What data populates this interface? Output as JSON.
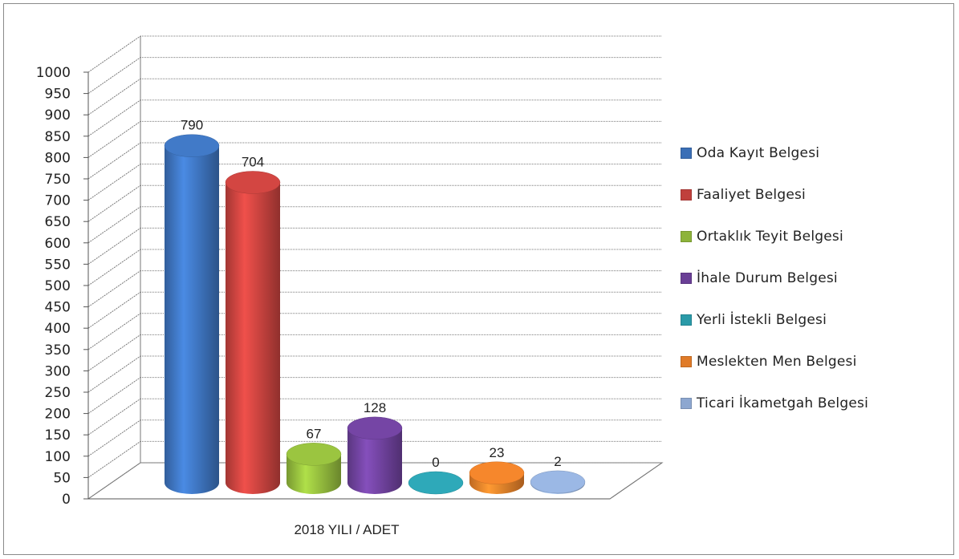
{
  "chart_data": {
    "type": "bar",
    "categories": [
      "2018 YILI / ADET"
    ],
    "xlabel": "2018 YILI / ADET",
    "ylim": [
      0,
      1000
    ],
    "ytick_step": 50,
    "yticks": [
      "0",
      "50",
      "100",
      "150",
      "200",
      "250",
      "300",
      "350",
      "400",
      "450",
      "500",
      "550",
      "600",
      "650",
      "700",
      "750",
      "800",
      "850",
      "900",
      "950",
      "1000"
    ],
    "grid": true,
    "three_d": true,
    "legend_position": "right",
    "series": [
      {
        "name": "Oda Kayıt Belgesi",
        "values": [
          790
        ],
        "color": "#3b6fb6"
      },
      {
        "name": "Faaliyet Belgesi",
        "values": [
          704
        ],
        "color": "#c0403c"
      },
      {
        "name": "Ortaklık Teyit Belgesi",
        "values": [
          67
        ],
        "color": "#8db33a"
      },
      {
        "name": "İhale Durum Belgesi",
        "values": [
          128
        ],
        "color": "#6a3f96"
      },
      {
        "name": "Yerli İstekli Belgesi",
        "values": [
          0
        ],
        "color": "#2a9aa8"
      },
      {
        "name": "Meslekten Men Belgesi",
        "values": [
          23
        ],
        "color": "#e07b28"
      },
      {
        "name": "Ticari İkametgah Belgesi",
        "values": [
          2
        ],
        "color": "#8da7d0"
      }
    ]
  }
}
